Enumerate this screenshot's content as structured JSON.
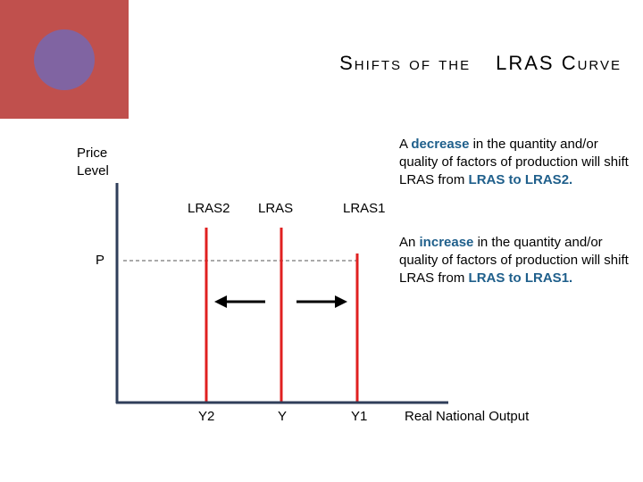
{
  "slide": {
    "title_part1": "Shifts of the",
    "title_part2": "LRAS Curve"
  },
  "axes": {
    "y_label_line1": "Price",
    "y_label_line2": "Level",
    "x_label": "Real National Output",
    "price_level_label": "P"
  },
  "curves": [
    {
      "label": "LRAS2",
      "output_label": "Y2"
    },
    {
      "label": "LRAS",
      "output_label": "Y"
    },
    {
      "label": "LRAS1",
      "output_label": "Y1"
    }
  ],
  "notes": {
    "decrease": {
      "pre": "A ",
      "keyword": "decrease",
      "mid": " in the quantity and/or quality of factors of production will shift LRAS from ",
      "from_to": "LRAS to LRAS2."
    },
    "increase": {
      "pre": "An ",
      "keyword": "increase",
      "mid": " in the quantity and/or quality of factors of production will shift LRAS from ",
      "from_to": "LRAS to LRAS1."
    }
  },
  "colors": {
    "accent_block": "#c0504d",
    "accent_circle": "#8064a2",
    "curve": "#e02020",
    "axis": "#2f3e5a",
    "keyword": "#1f5f8b"
  }
}
